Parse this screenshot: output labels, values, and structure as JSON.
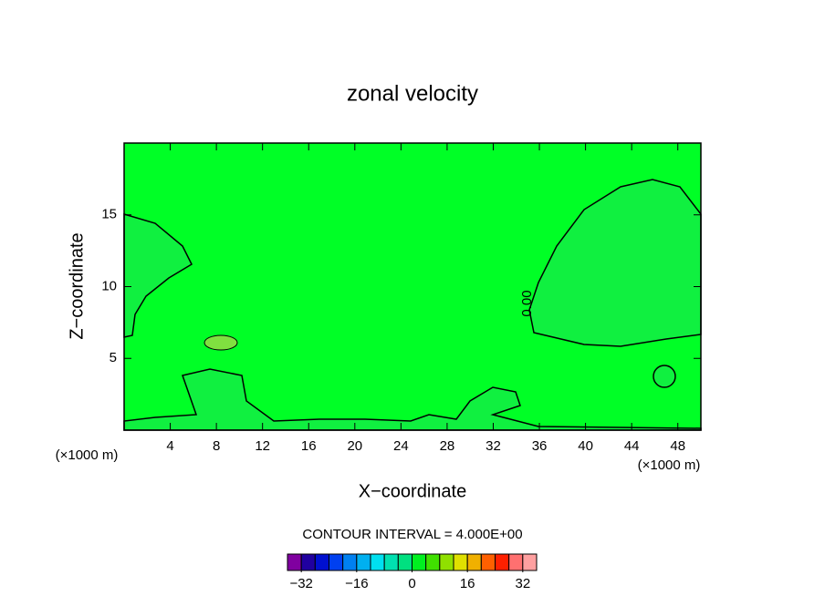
{
  "chart_data": {
    "type": "contour",
    "title": "zonal velocity",
    "xlabel": "X−coordinate",
    "ylabel": "Z−coordinate",
    "x_unit_label": "(×1000 m)",
    "y_unit_label": "(×1000 m)",
    "xlim": [
      0,
      50
    ],
    "ylim": [
      0,
      20
    ],
    "xticks": [
      4,
      8,
      12,
      16,
      20,
      24,
      28,
      32,
      36,
      40,
      44,
      48
    ],
    "yticks": [
      5,
      10,
      15
    ],
    "contour_label": "0.00",
    "contour_interval": "CONTOUR INTERVAL = 4.000E+00",
    "colorbar": {
      "levels": [
        -36,
        -32,
        -28,
        -24,
        -20,
        -16,
        -12,
        -8,
        -4,
        0,
        4,
        8,
        12,
        16,
        20,
        24,
        28,
        32,
        36
      ],
      "colors": [
        "#8000a0",
        "#2000a0",
        "#0010d0",
        "#0040f0",
        "#0080f0",
        "#00b0f0",
        "#00e0f0",
        "#00e0b0",
        "#00e080",
        "#00f020",
        "#40e000",
        "#90e000",
        "#e0e000",
        "#f0b000",
        "#ff6000",
        "#ff2000",
        "#ff7070",
        "#ffa0a0"
      ],
      "ticks": [
        {
          "value": -32,
          "label": "−32"
        },
        {
          "value": -16,
          "label": "−16"
        },
        0,
        16,
        32
      ]
    }
  }
}
